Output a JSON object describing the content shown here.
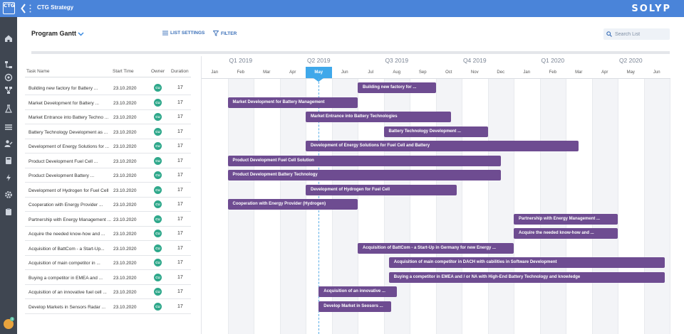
{
  "app": {
    "title": "CTG Strategy",
    "brand": "SOLYP",
    "logo_text": "CTG"
  },
  "header": {
    "view_title": "Program Gantt",
    "list_settings": "LIST SETTINGS",
    "filter": "FILTER",
    "search_placeholder": "Search List"
  },
  "rail": {
    "items": [
      "home-icon",
      "hierarchy-icon",
      "target-icon",
      "network-icon",
      "flask-icon",
      "list-icon",
      "user-edit-icon",
      "calculator-icon",
      "lightning-icon",
      "gear-icon",
      "clipboard-icon"
    ],
    "notification_count": "3"
  },
  "table": {
    "columns": [
      "Task Name",
      "Start Time",
      "Owner",
      "Duration"
    ],
    "rows": [
      {
        "name": "Building new factory for Battery ...",
        "start": "23.10.2020",
        "owner": "CU",
        "duration": "17"
      },
      {
        "name": "Market Development for Battery ...",
        "start": "23.10.2020",
        "owner": "CU",
        "duration": "17"
      },
      {
        "name": "Market Entrance into Battery Techno ...",
        "start": "23.10.2020",
        "owner": "CU",
        "duration": "17"
      },
      {
        "name": "Battery Technology Development as ...",
        "start": "23.10.2020",
        "owner": "CU",
        "duration": "17"
      },
      {
        "name": "Development of Energy Solutions for ...",
        "start": "23.10.2020",
        "owner": "CU",
        "duration": "17"
      },
      {
        "name": "Product Development Fuel Cell ...",
        "start": "23.10.2020",
        "owner": "CU",
        "duration": "17"
      },
      {
        "name": "Product Development Battery ...",
        "start": "23.10.2020",
        "owner": "CU",
        "duration": "17"
      },
      {
        "name": "Development of Hydrogen for Fuel Cell",
        "start": "23.10.2020",
        "owner": "CU",
        "duration": "17"
      },
      {
        "name": "Cooperation with Energy Provider ...",
        "start": "23.10.2020",
        "owner": "CU",
        "duration": "17"
      },
      {
        "name": "Partnership with Energy Management ...",
        "start": "23.10.2020",
        "owner": "CU",
        "duration": "17"
      },
      {
        "name": "Acquire the needed know-how and ...",
        "start": "23.10.2020",
        "owner": "CU",
        "duration": "17"
      },
      {
        "name": "Acquisition of BattCom - a Start-Up...",
        "start": "23.10.2020",
        "owner": "CU",
        "duration": "17"
      },
      {
        "name": "Acquisition of main competitor in ...",
        "start": "23.10.2020",
        "owner": "CU",
        "duration": "17"
      },
      {
        "name": "Buying a competitor in EMEA and ...",
        "start": "23.10.2020",
        "owner": "CU",
        "duration": "17"
      },
      {
        "name": "Acquisition of an innovative fuel cell ...",
        "start": "23.10.2020",
        "owner": "CU",
        "duration": "17"
      },
      {
        "name": "Develop Markets in Sensors Radar ...",
        "start": "23.10.2020",
        "owner": "CU",
        "duration": "17"
      }
    ]
  },
  "gantt": {
    "quarters": [
      "Q1 2019",
      "Q2 2019",
      "Q3 2019",
      "Q4 2019",
      "Q1 2020",
      "Q2 2020"
    ],
    "months": [
      "Jan",
      "Feb",
      "Mar",
      "Apr",
      "May",
      "Jun",
      "Jul",
      "Aug",
      "Sep",
      "Oct",
      "Nov",
      "Dec",
      "Jan",
      "Feb",
      "Mar",
      "Apr",
      "May",
      "Jun"
    ],
    "current_month_index": 4,
    "today_month_offset": 4.5,
    "bars": [
      {
        "label": "Building new factory for ...",
        "start_month": 6.0,
        "end_month": 9.0
      },
      {
        "label": "Market Development for Battery Management",
        "start_month": 1.0,
        "end_month": 6.0
      },
      {
        "label": "Market Entrance into Battery Technologies",
        "start_month": 4.0,
        "end_month": 9.6
      },
      {
        "label": "Battery Technology Development ...",
        "start_month": 7.0,
        "end_month": 11.0
      },
      {
        "label": "Development of Energy Solutions for Fuel Cell and Battery",
        "start_month": 4.0,
        "end_month": 14.5
      },
      {
        "label": "Product Development Fuel Cell Solution",
        "start_month": 1.0,
        "end_month": 11.5
      },
      {
        "label": "Product Development Battery Technology",
        "start_month": 1.0,
        "end_month": 11.5
      },
      {
        "label": "Development of Hydrogen for Fuel Cell",
        "start_month": 4.0,
        "end_month": 9.8
      },
      {
        "label": "Cooperation with Energy Provider (Hydrogen)",
        "start_month": 1.0,
        "end_month": 6.0
      },
      {
        "label": "Partnership with Energy Management ...",
        "start_month": 12.0,
        "end_month": 16.0
      },
      {
        "label": "Acquire the needed know-how and ...",
        "start_month": 12.0,
        "end_month": 16.0
      },
      {
        "label": "Acquisition of BattCom - a Start-Up in Germany for new Energy ...",
        "start_month": 6.0,
        "end_month": 12.0
      },
      {
        "label": "Acquisition of main competitor in DACH with cabilities in Software Development",
        "start_month": 7.2,
        "end_month": 17.8
      },
      {
        "label": "Buying a competitor in EMEA and / or NA with High-End Battery Technology and knowledge",
        "start_month": 7.2,
        "end_month": 17.8
      },
      {
        "label": "Acquisition of an innovative ...",
        "start_month": 4.5,
        "end_month": 7.5
      },
      {
        "label": "Develop Market in Seosors ...",
        "start_month": 4.5,
        "end_month": 7.3
      }
    ]
  },
  "colors": {
    "topbar": "#4a84d9",
    "rail": "#3f4651",
    "bar": "#6e4c91",
    "owner_badge": "#2fa88b",
    "current_month": "#3fa8ea",
    "link": "#3a6fb8"
  }
}
